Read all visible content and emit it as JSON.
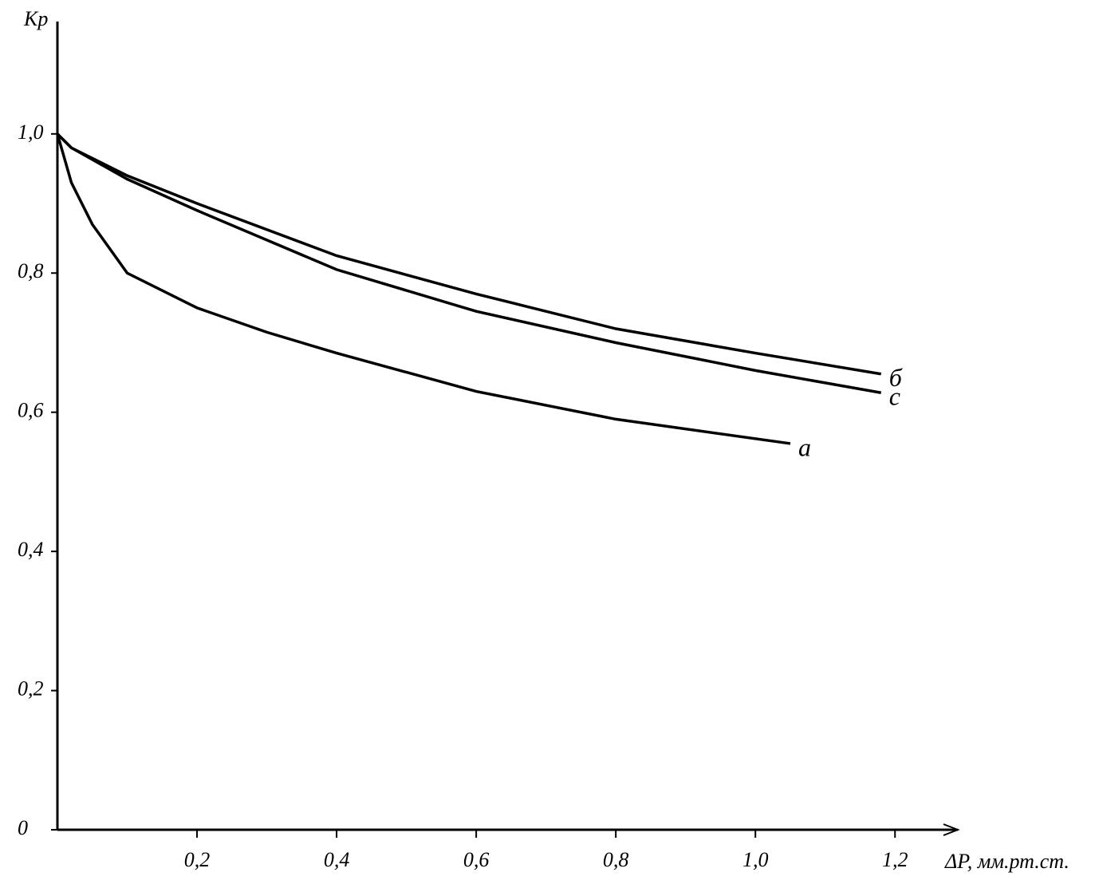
{
  "chart_data": {
    "type": "line",
    "y_label": "Kp",
    "x_label": "ΔP, мм.рт.ст.",
    "xlim": [
      0,
      1.29
    ],
    "ylim": [
      0,
      1.15
    ],
    "xticks": [
      {
        "value": 0.2,
        "label": "0,2"
      },
      {
        "value": 0.4,
        "label": "0,4"
      },
      {
        "value": 0.6,
        "label": "0,6"
      },
      {
        "value": 0.8,
        "label": "0,8"
      },
      {
        "value": 1.0,
        "label": "1,0"
      },
      {
        "value": 1.2,
        "label": "1,2"
      }
    ],
    "yticks": [
      0,
      {
        "value": 0.2,
        "label": "0,2"
      },
      {
        "value": 0.4,
        "label": "0,4"
      },
      {
        "value": 0.6,
        "label": "0,6"
      },
      {
        "value": 0.8,
        "label": "0,8"
      },
      {
        "value": 1.0,
        "label": "1,0"
      }
    ],
    "series": [
      {
        "name": "a",
        "color": "#000000",
        "x": [
          0,
          0.02,
          0.05,
          0.1,
          0.2,
          0.3,
          0.4,
          0.6,
          0.8,
          1.05
        ],
        "values": [
          1.0,
          0.93,
          0.87,
          0.8,
          0.75,
          0.715,
          0.685,
          0.63,
          0.59,
          0.555
        ]
      },
      {
        "name": "б",
        "color": "#000000",
        "x": [
          0,
          0.02,
          0.1,
          0.2,
          0.4,
          0.6,
          0.8,
          1.0,
          1.18
        ],
        "values": [
          1.0,
          0.98,
          0.94,
          0.9,
          0.825,
          0.77,
          0.72,
          0.685,
          0.655
        ]
      },
      {
        "name": "c",
        "color": "#000000",
        "x": [
          0,
          0.02,
          0.1,
          0.2,
          0.4,
          0.6,
          0.8,
          1.0,
          1.18
        ],
        "values": [
          1.0,
          0.98,
          0.935,
          0.89,
          0.805,
          0.745,
          0.7,
          0.66,
          0.628
        ]
      }
    ]
  }
}
